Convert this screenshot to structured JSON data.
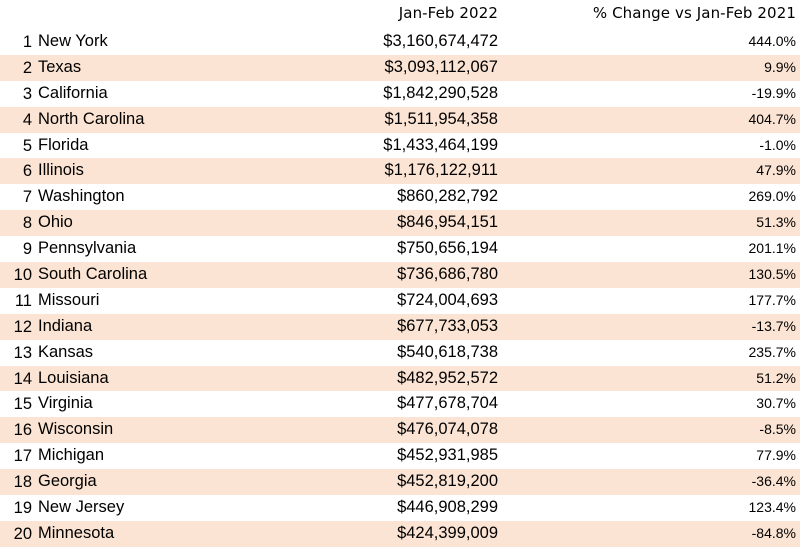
{
  "chart_data": {
    "type": "table",
    "columns": [
      "",
      "",
      "Jan-Feb 2022",
      "% Change vs Jan-Feb 2021"
    ],
    "row_shade_color": "#fbe4d4",
    "rows": [
      {
        "rank": "1",
        "state": "New York",
        "value": "$3,160,674,472",
        "change": "444.0%"
      },
      {
        "rank": "2",
        "state": "Texas",
        "value": "$3,093,112,067",
        "change": "9.9%"
      },
      {
        "rank": "3",
        "state": "California",
        "value": "$1,842,290,528",
        "change": "-19.9%"
      },
      {
        "rank": "4",
        "state": "North Carolina",
        "value": "$1,511,954,358",
        "change": "404.7%"
      },
      {
        "rank": "5",
        "state": "Florida",
        "value": "$1,433,464,199",
        "change": "-1.0%"
      },
      {
        "rank": "6",
        "state": "Illinois",
        "value": "$1,176,122,911",
        "change": "47.9%"
      },
      {
        "rank": "7",
        "state": "Washington",
        "value": "$860,282,792",
        "change": "269.0%"
      },
      {
        "rank": "8",
        "state": "Ohio",
        "value": "$846,954,151",
        "change": "51.3%"
      },
      {
        "rank": "9",
        "state": "Pennsylvania",
        "value": "$750,656,194",
        "change": "201.1%"
      },
      {
        "rank": "10",
        "state": "South Carolina",
        "value": "$736,686,780",
        "change": "130.5%"
      },
      {
        "rank": "11",
        "state": "Missouri",
        "value": "$724,004,693",
        "change": "177.7%"
      },
      {
        "rank": "12",
        "state": "Indiana",
        "value": "$677,733,053",
        "change": "-13.7%"
      },
      {
        "rank": "13",
        "state": "Kansas",
        "value": "$540,618,738",
        "change": "235.7%"
      },
      {
        "rank": "14",
        "state": "Louisiana",
        "value": "$482,952,572",
        "change": "51.2%"
      },
      {
        "rank": "15",
        "state": "Virginia",
        "value": "$477,678,704",
        "change": "30.7%"
      },
      {
        "rank": "16",
        "state": "Wisconsin",
        "value": "$476,074,078",
        "change": "-8.5%"
      },
      {
        "rank": "17",
        "state": "Michigan",
        "value": "$452,931,985",
        "change": "77.9%"
      },
      {
        "rank": "18",
        "state": "Georgia",
        "value": "$452,819,200",
        "change": "-36.4%"
      },
      {
        "rank": "19",
        "state": "New Jersey",
        "value": "$446,908,299",
        "change": "123.4%"
      },
      {
        "rank": "20",
        "state": "Minnesota",
        "value": "$424,399,009",
        "change": "-84.8%"
      }
    ]
  }
}
